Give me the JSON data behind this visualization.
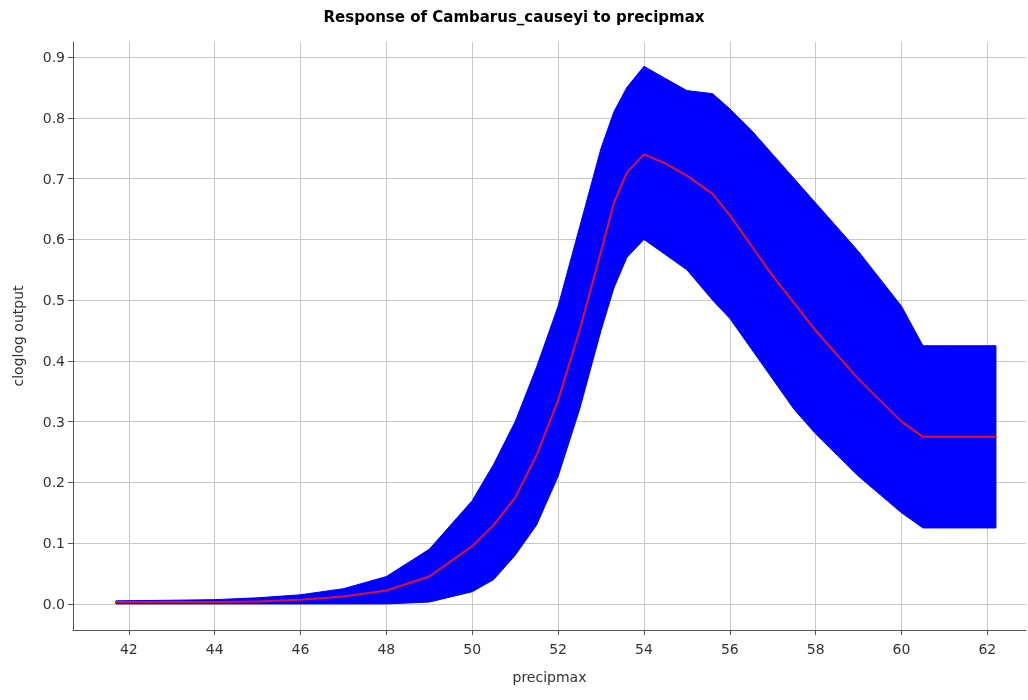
{
  "chart_data": {
    "type": "line",
    "title": "Response of Cambarus_causeyi to precipmax",
    "xlabel": "precipmax",
    "ylabel": "cloglog output",
    "series": [
      {
        "color": "#e0102f",
        "x": [
          41.7,
          43,
          44,
          45,
          46,
          47,
          48,
          49,
          50,
          50.5,
          51,
          51.5,
          52,
          52.5,
          53,
          53.3,
          53.6,
          54,
          54.5,
          55,
          55.6,
          56,
          56.5,
          57,
          57.5,
          58,
          58.5,
          59,
          59.5,
          60,
          60.5,
          61,
          62.2
        ],
        "values": [
          0.003,
          0.003,
          0.003,
          0.004,
          0.007,
          0.012,
          0.022,
          0.045,
          0.095,
          0.13,
          0.175,
          0.245,
          0.335,
          0.45,
          0.58,
          0.66,
          0.71,
          0.74,
          0.725,
          0.705,
          0.675,
          0.64,
          0.59,
          0.54,
          0.495,
          0.45,
          0.41,
          0.37,
          0.335,
          0.3,
          0.275,
          0.275,
          0.275
        ],
        "upper": [
          0.005,
          0.006,
          0.007,
          0.01,
          0.015,
          0.025,
          0.045,
          0.09,
          0.17,
          0.23,
          0.3,
          0.39,
          0.49,
          0.62,
          0.75,
          0.81,
          0.85,
          0.885,
          0.865,
          0.845,
          0.84,
          0.815,
          0.78,
          0.74,
          0.7,
          0.66,
          0.62,
          0.58,
          0.535,
          0.49,
          0.425,
          0.425,
          0.425
        ],
        "lower": [
          0,
          0,
          0,
          0,
          0,
          0,
          0,
          0.003,
          0.02,
          0.04,
          0.08,
          0.13,
          0.21,
          0.32,
          0.45,
          0.52,
          0.57,
          0.6,
          0.575,
          0.55,
          0.5,
          0.47,
          0.42,
          0.37,
          0.32,
          0.28,
          0.245,
          0.21,
          0.18,
          0.15,
          0.125,
          0.125,
          0.125
        ]
      }
    ],
    "xlim": [
      40.7,
      62.9
    ],
    "xticks": [
      42,
      44,
      46,
      48,
      50,
      52,
      54,
      56,
      58,
      60,
      62
    ],
    "ylim": [
      -0.043,
      0.925
    ],
    "yticks": [
      {
        "value": 0,
        "label": "0.0"
      },
      0.1,
      0.2,
      0.3,
      0.4,
      0.5,
      0.6,
      0.7,
      0.8,
      0.9
    ],
    "grid": true,
    "marker": "none",
    "line_style": "solid"
  }
}
